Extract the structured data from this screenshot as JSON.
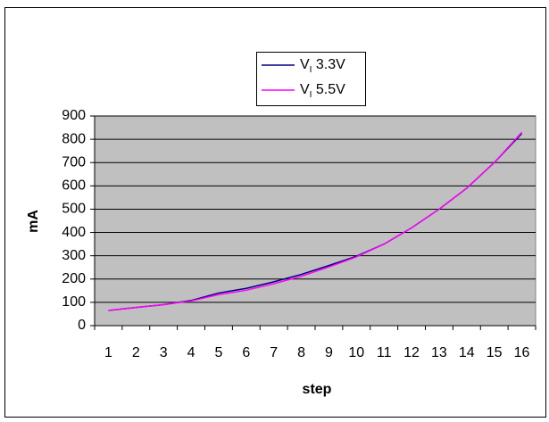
{
  "chart_data": {
    "type": "line",
    "x_label": "step",
    "y_label": "mA",
    "categories": [
      "1",
      "2",
      "3",
      "4",
      "5",
      "6",
      "7",
      "8",
      "9",
      "10",
      "11",
      "12",
      "13",
      "14",
      "15",
      "16"
    ],
    "series": [
      {
        "name": "VI 3.3V",
        "color": "#000080",
        "values": [
          65,
          78,
          90,
          108,
          140,
          160,
          188,
          220,
          258,
          298,
          350,
          420,
          500,
          590,
          700,
          825
        ]
      },
      {
        "name": "VI 5.5V",
        "color": "#ff00ff",
        "values": [
          65,
          78,
          90,
          106,
          133,
          152,
          180,
          212,
          252,
          295,
          350,
          420,
          500,
          590,
          700,
          830
        ]
      }
    ],
    "ylim": [
      0,
      900
    ],
    "yticks": [
      0,
      100,
      200,
      300,
      400,
      500,
      600,
      700,
      800,
      900
    ],
    "grid": true,
    "plot_background": "#c0c0c0",
    "legend": "top"
  }
}
